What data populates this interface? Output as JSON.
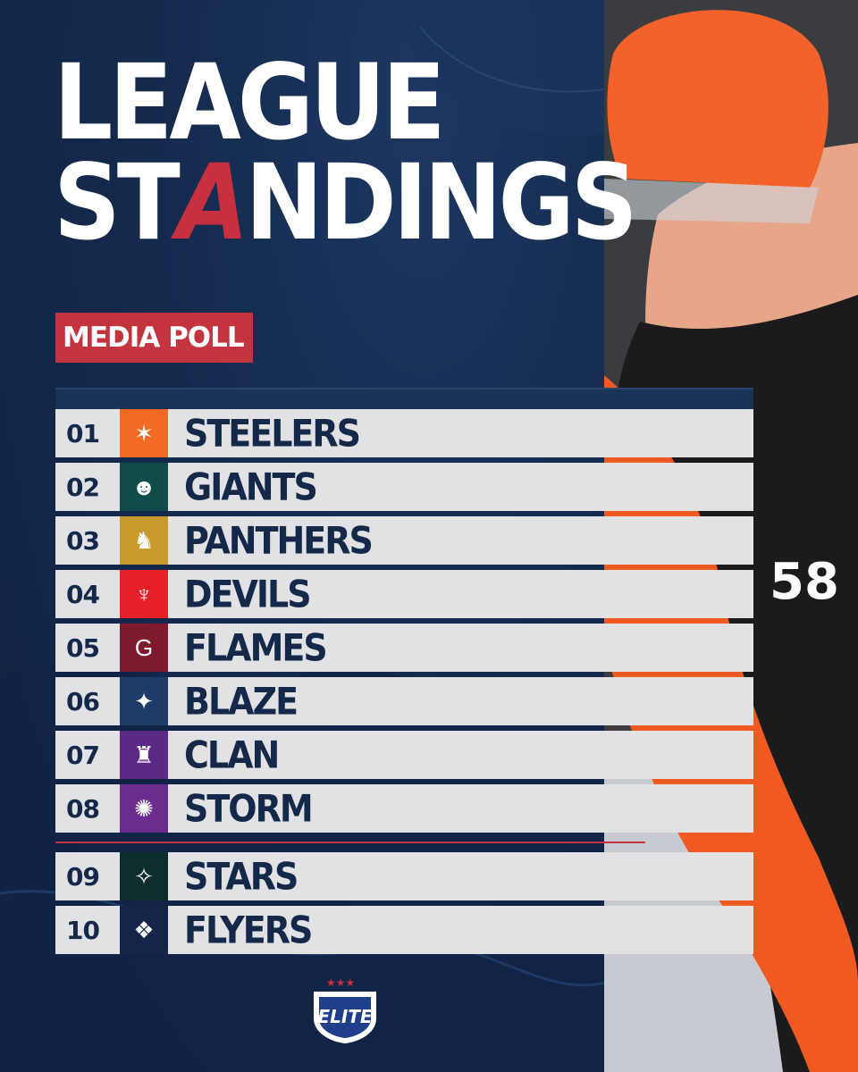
{
  "title": {
    "line1": "LEAGUE",
    "line2_a": "ST",
    "line2_accent": "A",
    "line2_b": "NDINGS"
  },
  "badge": "MEDIA POLL",
  "standings": [
    {
      "rank": "01",
      "team": "STEELERS",
      "color": "#f26a24",
      "icon": "star-icon"
    },
    {
      "rank": "02",
      "team": "GIANTS",
      "color": "#0f4c4a",
      "icon": "helmet-icon"
    },
    {
      "rank": "03",
      "team": "PANTHERS",
      "color": "#c79a2e",
      "icon": "panther-icon"
    },
    {
      "rank": "04",
      "team": "DEVILS",
      "color": "#e52027",
      "icon": "devil-icon"
    },
    {
      "rank": "05",
      "team": "FLAMES",
      "color": "#7d1a2d",
      "icon": "flame-icon"
    },
    {
      "rank": "06",
      "team": "BLAZE",
      "color": "#1d3d68",
      "icon": "blaze-icon"
    },
    {
      "rank": "07",
      "team": "CLAN",
      "color": "#5b2a86",
      "icon": "clan-icon"
    },
    {
      "rank": "08",
      "team": "STORM",
      "color": "#6a2c8e",
      "icon": "storm-icon"
    },
    {
      "rank": "09",
      "team": "STARS",
      "color": "#0e2e2e",
      "icon": "stars-icon"
    },
    {
      "rank": "10",
      "team": "FLYERS",
      "color": "#14254a",
      "icon": "wings-icon"
    }
  ],
  "league_logo": "ELITE"
}
